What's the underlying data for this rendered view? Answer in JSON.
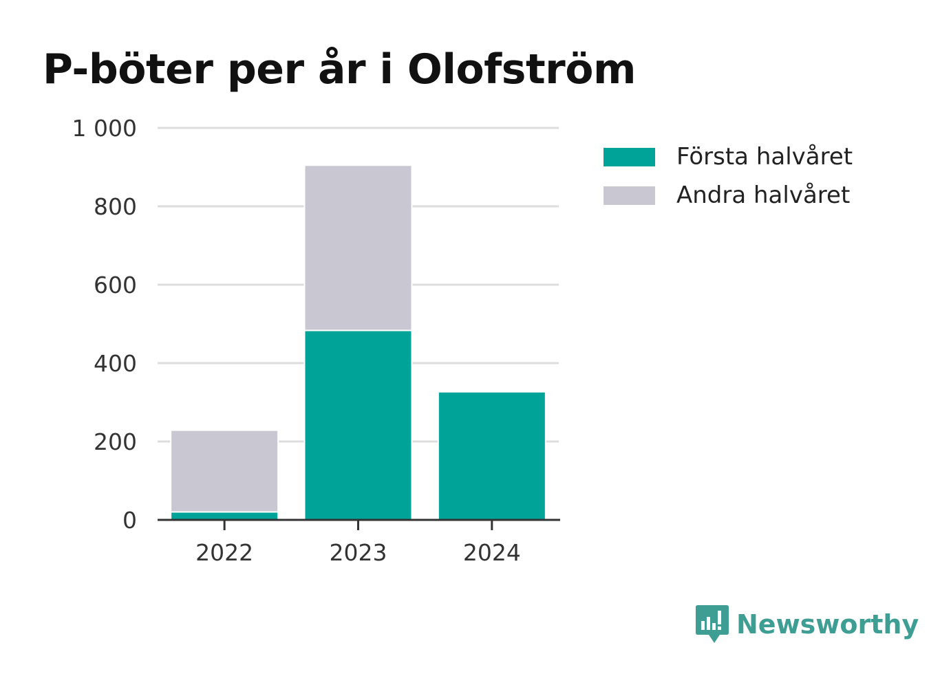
{
  "title": "P-böter per år i Olofström",
  "colors": {
    "first": "#00a398",
    "second": "#c8c7d2",
    "grid": "#dddddd",
    "axis": "#333333",
    "brand": "#3f9e93"
  },
  "legend": {
    "items": [
      {
        "label": "Första halvåret"
      },
      {
        "label": "Andra halvåret"
      }
    ]
  },
  "brand": {
    "name": "Newsworthy",
    "icon": "newsworthy-logo-icon"
  },
  "chart_data": {
    "type": "bar",
    "stacked": true,
    "title": "P-böter per år i Olofström",
    "categories": [
      "2022",
      "2023",
      "2024"
    ],
    "series": [
      {
        "name": "Första halvåret",
        "values": [
          22,
          485,
          325
        ]
      },
      {
        "name": "Andra halvåret",
        "values": [
          205,
          418,
          0
        ]
      }
    ],
    "ylim": [
      0,
      1000
    ],
    "yticks": [
      0,
      200,
      400,
      600,
      800,
      1000
    ],
    "ytick_labels": [
      "0",
      "200",
      "400",
      "600",
      "800",
      "1 000"
    ],
    "grid": true,
    "legend_position": "top-right"
  }
}
